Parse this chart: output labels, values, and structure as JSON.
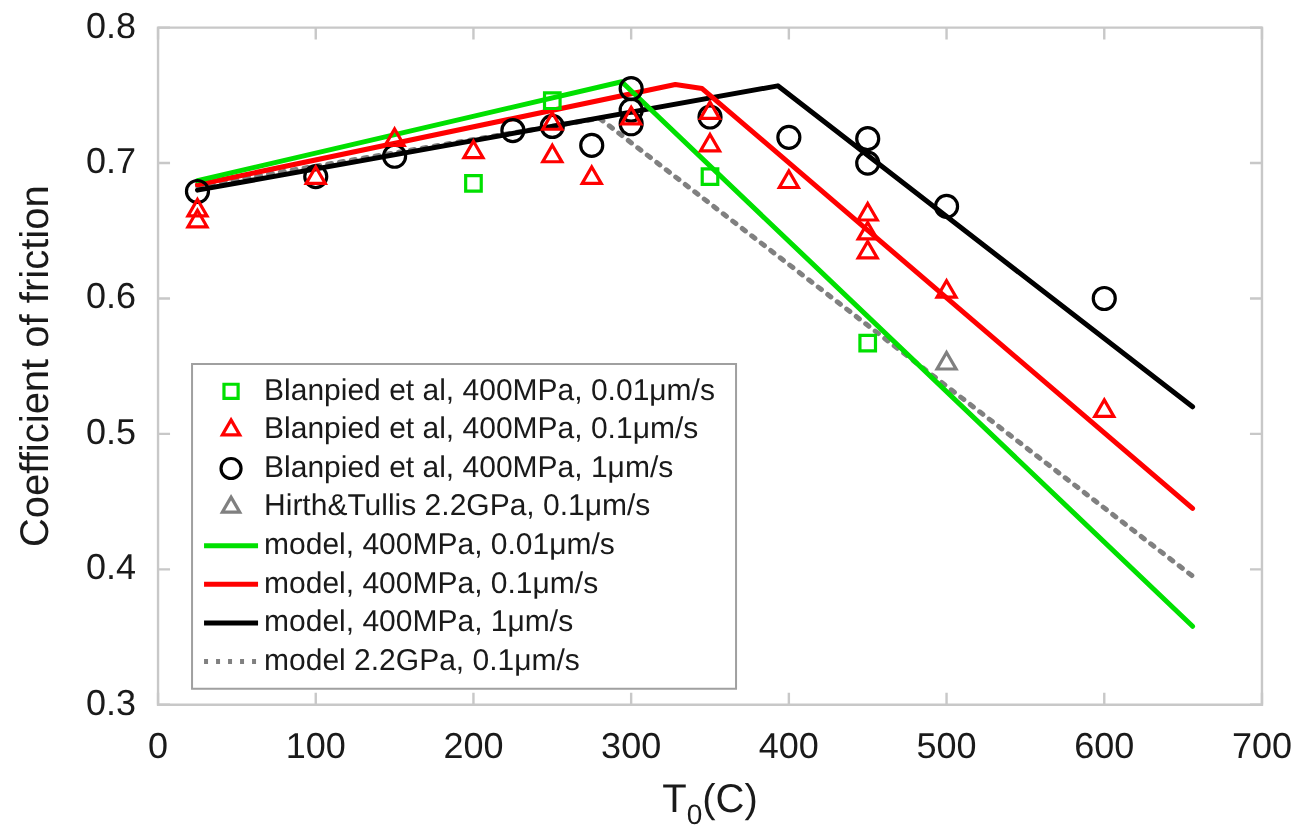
{
  "chart_data": {
    "type": "scatter",
    "xlabel": "T$_{0}$(C)",
    "ylabel": "Coefficient of friction",
    "xlim": [
      0,
      700
    ],
    "xticks": [
      0,
      100,
      200,
      300,
      400,
      500,
      600,
      700
    ],
    "ylim": [
      0.3,
      0.8
    ],
    "yticks": [
      0.3,
      0.4,
      0.5,
      0.6,
      0.7,
      0.8
    ],
    "grid": false,
    "legend": "bottom left",
    "series": [
      {
        "name": "Blanpied et al, 400MPa, 0.01μm/s",
        "marker": "square",
        "color": "#00e000",
        "x": [
          200,
          250,
          350,
          450
        ],
        "values": [
          0.685,
          0.746,
          0.69,
          0.567
        ]
      },
      {
        "name": "Blanpied et al, 400MPa, 0.1μm/s",
        "marker": "triangle",
        "color": "#ff0000",
        "x": [
          25,
          25,
          100,
          150,
          200,
          250,
          250,
          275,
          300,
          350,
          350,
          400,
          450,
          450,
          450,
          500,
          600
        ],
        "values": [
          0.665,
          0.657,
          0.689,
          0.717,
          0.708,
          0.729,
          0.705,
          0.689,
          0.733,
          0.737,
          0.713,
          0.686,
          0.662,
          0.648,
          0.634,
          0.605,
          0.517
        ]
      },
      {
        "name": "Blanpied et al, 400MPa, 1μm/s",
        "marker": "circle",
        "color": "#000000",
        "x": [
          25,
          100,
          150,
          225,
          250,
          275,
          300,
          300,
          300,
          350,
          400,
          450,
          450,
          500,
          600
        ],
        "values": [
          0.679,
          0.69,
          0.705,
          0.724,
          0.727,
          0.713,
          0.755,
          0.739,
          0.729,
          0.734,
          0.719,
          0.718,
          0.7,
          0.668,
          0.6
        ]
      },
      {
        "name": "Hirth&Tullis 2.2GPa, 0.1μm/s",
        "marker": "triangle",
        "color": "#808080",
        "x": [
          500
        ],
        "values": [
          0.552
        ]
      },
      {
        "name": "model, 400MPa, 0.01μm/s",
        "type": "line",
        "marker": "none",
        "line_style": "solid",
        "color": "#00e000",
        "x": [
          25,
          294,
          656
        ],
        "values": [
          0.687,
          0.76,
          0.358
        ]
      },
      {
        "name": "model, 400MPa, 0.1μm/s",
        "type": "line",
        "marker": "none",
        "line_style": "solid",
        "color": "#ff0000",
        "x": [
          25,
          328,
          345,
          656
        ],
        "values": [
          0.684,
          0.758,
          0.755,
          0.445
        ]
      },
      {
        "name": "model, 400MPa, 1μm/s",
        "type": "line",
        "marker": "none",
        "line_style": "solid",
        "color": "#000000",
        "x": [
          25,
          393,
          656
        ],
        "values": [
          0.68,
          0.757,
          0.52
        ]
      },
      {
        "name": "model 2.2GPa, 0.1μm/s",
        "type": "line",
        "marker": "none",
        "line_style": "dotted",
        "color": "#808080",
        "x": [
          25,
          280,
          656
        ],
        "values": [
          0.683,
          0.733,
          0.395
        ]
      }
    ]
  }
}
